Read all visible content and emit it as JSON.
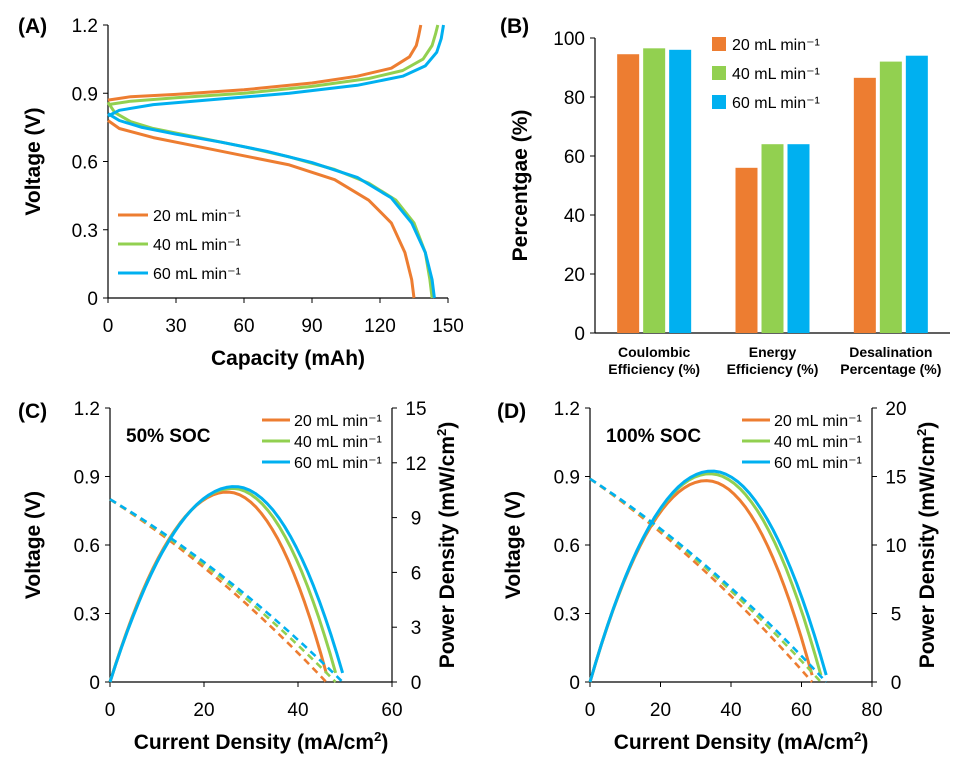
{
  "colors": {
    "s20": "#ED7D31",
    "s40": "#92D050",
    "s60": "#00B0F0"
  },
  "chart_data": [
    {
      "id": "A",
      "label": "(A)",
      "type": "line",
      "xlabel": "Capacity (mAh)",
      "ylabel": "Voltage (V)",
      "xlim": [
        0,
        150
      ],
      "ylim": [
        0,
        1.2
      ],
      "xticks": [
        0,
        30,
        60,
        90,
        120,
        150
      ],
      "yticks": [
        "0",
        "0.3",
        "0.6",
        "0.9",
        "1.2"
      ],
      "legend": [
        "20 mL min⁻¹",
        "40 mL min⁻¹",
        "60 mL min⁻¹"
      ],
      "series": [
        {
          "name": "20 mL min⁻¹",
          "color": "s20",
          "charge": [
            [
              0,
              0.87
            ],
            [
              10,
              0.885
            ],
            [
              30,
              0.895
            ],
            [
              60,
              0.915
            ],
            [
              90,
              0.945
            ],
            [
              110,
              0.975
            ],
            [
              125,
              1.01
            ],
            [
              133,
              1.06
            ],
            [
              136,
              1.11
            ],
            [
              137,
              1.15
            ],
            [
              138,
              1.2
            ]
          ],
          "discharge": [
            [
              0,
              0.78
            ],
            [
              5,
              0.745
            ],
            [
              20,
              0.705
            ],
            [
              40,
              0.665
            ],
            [
              60,
              0.625
            ],
            [
              80,
              0.585
            ],
            [
              100,
              0.52
            ],
            [
              115,
              0.43
            ],
            [
              125,
              0.33
            ],
            [
              131,
              0.2
            ],
            [
              134,
              0.08
            ],
            [
              135,
              0
            ]
          ]
        },
        {
          "name": "40 mL min⁻¹",
          "color": "s40",
          "charge": [
            [
              0,
              0.85
            ],
            [
              10,
              0.865
            ],
            [
              30,
              0.88
            ],
            [
              60,
              0.9
            ],
            [
              90,
              0.93
            ],
            [
              115,
              0.965
            ],
            [
              130,
              1.0
            ],
            [
              139,
              1.05
            ],
            [
              143,
              1.11
            ],
            [
              144.5,
              1.16
            ],
            [
              145.5,
              1.2
            ]
          ],
          "discharge": [
            [
              0,
              0.86
            ],
            [
              3,
              0.815
            ],
            [
              10,
              0.775
            ],
            [
              20,
              0.745
            ],
            [
              40,
              0.705
            ],
            [
              60,
              0.665
            ],
            [
              80,
              0.62
            ],
            [
              100,
              0.565
            ],
            [
              115,
              0.505
            ],
            [
              127,
              0.43
            ],
            [
              135,
              0.33
            ],
            [
              140,
              0.2
            ],
            [
              142,
              0.08
            ],
            [
              143,
              0
            ]
          ]
        },
        {
          "name": "60 mL min⁻¹",
          "color": "s60",
          "charge": [
            [
              0,
              0.8
            ],
            [
              5,
              0.825
            ],
            [
              20,
              0.85
            ],
            [
              50,
              0.875
            ],
            [
              80,
              0.9
            ],
            [
              110,
              0.935
            ],
            [
              130,
              0.975
            ],
            [
              140,
              1.02
            ],
            [
              145,
              1.08
            ],
            [
              147,
              1.14
            ],
            [
              148,
              1.2
            ]
          ],
          "discharge": [
            [
              0,
              0.81
            ],
            [
              5,
              0.78
            ],
            [
              15,
              0.75
            ],
            [
              30,
              0.72
            ],
            [
              50,
              0.685
            ],
            [
              70,
              0.645
            ],
            [
              90,
              0.595
            ],
            [
              110,
              0.53
            ],
            [
              125,
              0.44
            ],
            [
              134,
              0.33
            ],
            [
              140,
              0.2
            ],
            [
              143,
              0.08
            ],
            [
              144,
              0
            ]
          ]
        }
      ]
    },
    {
      "id": "B",
      "label": "(B)",
      "type": "bar",
      "ylabel": "Percentgae (%)",
      "ylim": [
        0,
        100
      ],
      "yticks": [
        "0",
        "20",
        "40",
        "60",
        "80",
        "100"
      ],
      "categories": [
        [
          "Coulombic",
          "Efficiency (%)"
        ],
        [
          "Energy",
          "Efficiency (%)"
        ],
        [
          "Desalination",
          "Percentage (%)"
        ]
      ],
      "legend": [
        "20 mL min⁻¹",
        "40 mL min⁻¹",
        "60 mL min⁻¹"
      ],
      "series": [
        {
          "name": "20 mL min⁻¹",
          "color": "s20",
          "values": [
            94.5,
            56,
            86.5
          ]
        },
        {
          "name": "40 mL min⁻¹",
          "color": "s40",
          "values": [
            96.5,
            64,
            92
          ]
        },
        {
          "name": "60 mL min⁻¹",
          "color": "s60",
          "values": [
            96,
            64,
            94
          ]
        }
      ]
    },
    {
      "id": "C",
      "label": "(C)",
      "type": "line",
      "annotation": "50%  SOC",
      "xlabel": "Current Density (mA/cm",
      "xlabel_sup": "2",
      "xlabel_end": ")",
      "ylabel": "Voltage (V)",
      "y2label": "Power Density (mW/cm",
      "y2label_sup": "2",
      "y2label_end": ")",
      "xlim": [
        0,
        60
      ],
      "ylim": [
        0,
        1.2
      ],
      "y2lim": [
        0,
        15
      ],
      "xticks": [
        0,
        20,
        40,
        60
      ],
      "yticks": [
        "0",
        "0.3",
        "0.6",
        "0.9",
        "1.2"
      ],
      "y2ticks": [
        "0",
        "3",
        "6",
        "9",
        "12",
        "15"
      ],
      "legend": [
        "20 mL min⁻¹",
        "40 mL min⁻¹",
        "60 mL min⁻¹"
      ],
      "series": [
        {
          "name": "20 mL min⁻¹",
          "color": "s20",
          "v0": 0.8,
          "xmax": 46,
          "power_peak_x": 25,
          "power_peak": 10.4,
          "power_end": 0.5
        },
        {
          "name": "40 mL min⁻¹",
          "color": "s40",
          "v0": 0.8,
          "xmax": 48,
          "power_peak_x": 26,
          "power_peak": 10.6,
          "power_end": 0.5
        },
        {
          "name": "60 mL min⁻¹",
          "color": "s60",
          "v0": 0.8,
          "xmax": 49.5,
          "power_peak_x": 26.5,
          "power_peak": 10.7,
          "power_end": 0.5
        }
      ]
    },
    {
      "id": "D",
      "label": "(D)",
      "type": "line",
      "annotation": "100%  SOC",
      "xlabel": "Current Density (mA/cm",
      "xlabel_sup": "2",
      "xlabel_end": ")",
      "ylabel": "Voltage (V)",
      "y2label": "Power Density (mW/cm",
      "y2label_sup": "2",
      "y2label_end": ")",
      "xlim": [
        0,
        80
      ],
      "ylim": [
        0,
        1.2
      ],
      "y2lim": [
        0,
        20
      ],
      "xticks": [
        0,
        20,
        40,
        60,
        80
      ],
      "yticks": [
        "0",
        "0.3",
        "0.6",
        "0.9",
        "1.2"
      ],
      "y2ticks": [
        "0",
        "5",
        "10",
        "15",
        "20"
      ],
      "legend": [
        "20 mL min⁻¹",
        "40 mL min⁻¹",
        "60 mL min⁻¹"
      ],
      "series": [
        {
          "name": "20 mL min⁻¹",
          "color": "s20",
          "v0": 0.89,
          "xmax": 63,
          "power_peak_x": 33,
          "power_peak": 14.7,
          "power_end": 0.5
        },
        {
          "name": "40 mL min⁻¹",
          "color": "s40",
          "v0": 0.89,
          "xmax": 65.5,
          "power_peak_x": 34,
          "power_peak": 15.2,
          "power_end": 0.5
        },
        {
          "name": "60 mL min⁻¹",
          "color": "s60",
          "v0": 0.89,
          "xmax": 67,
          "power_peak_x": 34.5,
          "power_peak": 15.4,
          "power_end": 0.5
        }
      ]
    }
  ]
}
